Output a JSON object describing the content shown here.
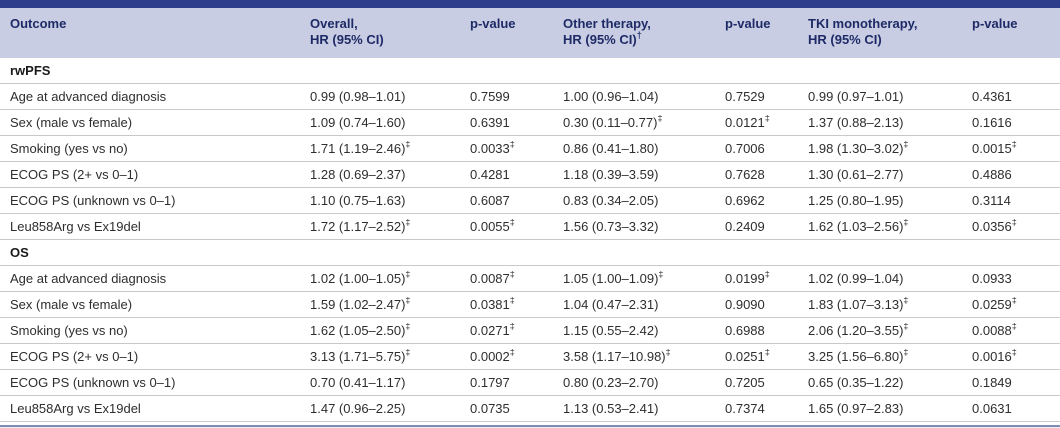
{
  "colors": {
    "top_bar": "#2e3c8c",
    "header_bg": "#c8cde3",
    "header_text": "#1e2a66",
    "body_text": "#2e2e2e",
    "row_divider": "#c9c9c9",
    "section_text": "#1a1a1a",
    "bottom_line": "#7f8db4"
  },
  "table": {
    "columns": [
      {
        "id": "outcome",
        "label": "Outcome"
      },
      {
        "id": "overall-hr",
        "label": "Overall,\nHR (95% CI)"
      },
      {
        "id": "overall-p",
        "label": "p-value"
      },
      {
        "id": "other-therapy-hr",
        "label": "Other therapy,\nHR (95% CI)†"
      },
      {
        "id": "other-therapy-p",
        "label": "p-value"
      },
      {
        "id": "tki-monotherapy-hr",
        "label": "TKI monotherapy,\nHR (95% CI)"
      },
      {
        "id": "tki-monotherapy-p",
        "label": "p-value"
      }
    ],
    "rows": [
      {
        "type": "section",
        "label": "rwPFS"
      },
      {
        "type": "data",
        "cells": [
          "Age at advanced diagnosis",
          "0.99 (0.98–1.01)",
          "0.7599",
          "1.00 (0.96–1.04)",
          "0.7529",
          "0.99 (0.97–1.01)",
          "0.4361"
        ]
      },
      {
        "type": "data",
        "cells": [
          "Sex (male vs female)",
          "1.09 (0.74–1.60)",
          "0.6391",
          "0.30 (0.11–0.77)‡",
          "0.0121‡",
          "1.37 (0.88–2.13)",
          "0.1616"
        ]
      },
      {
        "type": "data",
        "cells": [
          "Smoking (yes vs no)",
          "1.71 (1.19–2.46)‡",
          "0.0033‡",
          "0.86 (0.41–1.80)",
          "0.7006",
          "1.98 (1.30–3.02)‡",
          "0.0015‡"
        ]
      },
      {
        "type": "data",
        "cells": [
          "ECOG PS (2+ vs 0–1)",
          "1.28 (0.69–2.37)",
          "0.4281",
          "1.18 (0.39–3.59)",
          "0.7628",
          "1.30 (0.61–2.77)",
          "0.4886"
        ]
      },
      {
        "type": "data",
        "cells": [
          "ECOG PS (unknown vs 0–1)",
          "1.10 (0.75–1.63)",
          "0.6087",
          "0.83 (0.34–2.05)",
          "0.6962",
          "1.25 (0.80–1.95)",
          "0.3114"
        ]
      },
      {
        "type": "data",
        "cells": [
          "Leu858Arg vs Ex19del",
          "1.72 (1.17–2.52)‡",
          "0.0055‡",
          "1.56 (0.73–3.32)",
          "0.2409",
          "1.62 (1.03–2.56)‡",
          "0.0356‡"
        ]
      },
      {
        "type": "section",
        "label": "OS"
      },
      {
        "type": "data",
        "cells": [
          "Age at advanced diagnosis",
          "1.02 (1.00–1.05)‡",
          "0.0087‡",
          "1.05 (1.00–1.09)‡",
          "0.0199‡",
          "1.02 (0.99–1.04)",
          "0.0933"
        ]
      },
      {
        "type": "data",
        "cells": [
          "Sex (male vs female)",
          "1.59 (1.02–2.47)‡",
          "0.0381‡",
          "1.04 (0.47–2.31)",
          "0.9090",
          "1.83 (1.07–3.13)‡",
          "0.0259‡"
        ]
      },
      {
        "type": "data",
        "cells": [
          "Smoking (yes vs no)",
          "1.62 (1.05–2.50)‡",
          "0.0271‡",
          "1.15 (0.55–2.42)",
          "0.6988",
          "2.06 (1.20–3.55)‡",
          "0.0088‡"
        ]
      },
      {
        "type": "data",
        "cells": [
          "ECOG PS (2+ vs 0–1)",
          "3.13 (1.71–5.75)‡",
          "0.0002‡",
          "3.58 (1.17–10.98)‡",
          "0.0251‡",
          "3.25 (1.56–6.80)‡",
          "0.0016‡"
        ]
      },
      {
        "type": "data",
        "cells": [
          "ECOG PS (unknown vs 0–1)",
          "0.70 (0.41–1.17)",
          "0.1797",
          "0.80 (0.23–2.70)",
          "0.7205",
          "0.65 (0.35–1.22)",
          "0.1849"
        ]
      },
      {
        "type": "data",
        "cells": [
          "Leu858Arg vs Ex19del",
          "1.47 (0.96–2.25)",
          "0.0735",
          "1.13 (0.53–2.41)",
          "0.7374",
          "1.65 (0.97–2.83)",
          "0.0631"
        ]
      }
    ]
  }
}
